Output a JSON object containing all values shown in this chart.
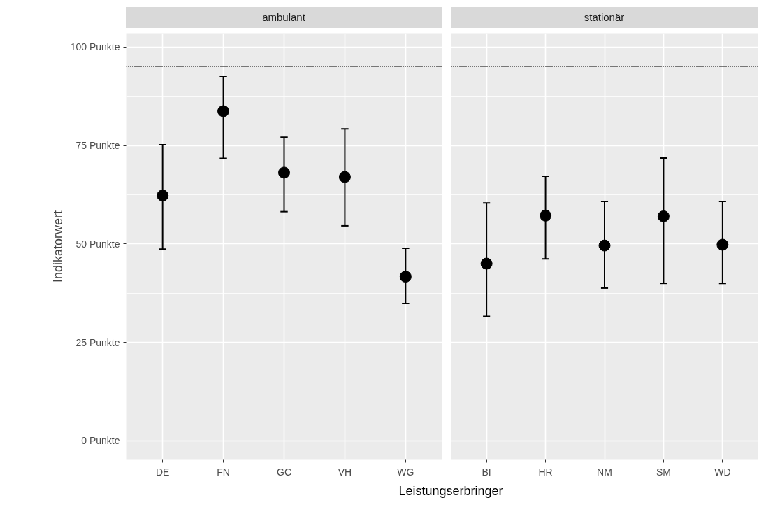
{
  "chart_data": [
    {
      "type": "scatter",
      "title": "ambulant",
      "ylabel": "Indikatorwert",
      "xlabel": "Leistungserbringer",
      "categories": [
        "DE",
        "FN",
        "GC",
        "VH",
        "WG"
      ],
      "values": [
        62.3,
        83.7,
        68.1,
        67.0,
        41.7
      ],
      "errors": [
        [
          48.7,
          75.2
        ],
        [
          71.7,
          92.6
        ],
        [
          58.2,
          77.1
        ],
        [
          54.6,
          79.2
        ],
        [
          34.9,
          48.9
        ]
      ],
      "color": "#000000",
      "marker": "circle",
      "ylim": [
        -4.8,
        103.5
      ],
      "yticks": [
        {
          "value": 0,
          "label": "0 Punkte"
        },
        {
          "value": 25,
          "label": "25 Punkte"
        },
        {
          "value": 50,
          "label": "50 Punkte"
        },
        {
          "value": 75,
          "label": "75 Punkte"
        },
        {
          "value": 100,
          "label": "100 Punkte"
        }
      ],
      "ref_lines": [
        {
          "axis": "y",
          "value": 95,
          "line_style": "dotted",
          "color": "#000000"
        }
      ],
      "grid": true
    },
    {
      "type": "scatter",
      "title": "stationär",
      "categories": [
        "BI",
        "HR",
        "NM",
        "SM",
        "WD"
      ],
      "values": [
        45.0,
        57.2,
        49.6,
        57.0,
        49.8
      ],
      "errors": [
        [
          31.6,
          60.4
        ],
        [
          46.2,
          67.2
        ],
        [
          38.8,
          60.8
        ],
        [
          40.0,
          71.8
        ],
        [
          40.0,
          60.8
        ]
      ],
      "color": "#000000",
      "marker": "circle",
      "ylim": [
        -4.8,
        103.5
      ],
      "yticks": [
        {
          "value": 0,
          "label": null
        },
        {
          "value": 25,
          "label": null
        },
        {
          "value": 50,
          "label": null
        },
        {
          "value": 75,
          "label": null
        },
        {
          "value": 100,
          "label": null
        }
      ],
      "ref_lines": [
        {
          "axis": "y",
          "value": 95,
          "line_style": "dotted",
          "color": "#000000"
        }
      ],
      "grid": true,
      "tick_labels": "x"
    }
  ]
}
